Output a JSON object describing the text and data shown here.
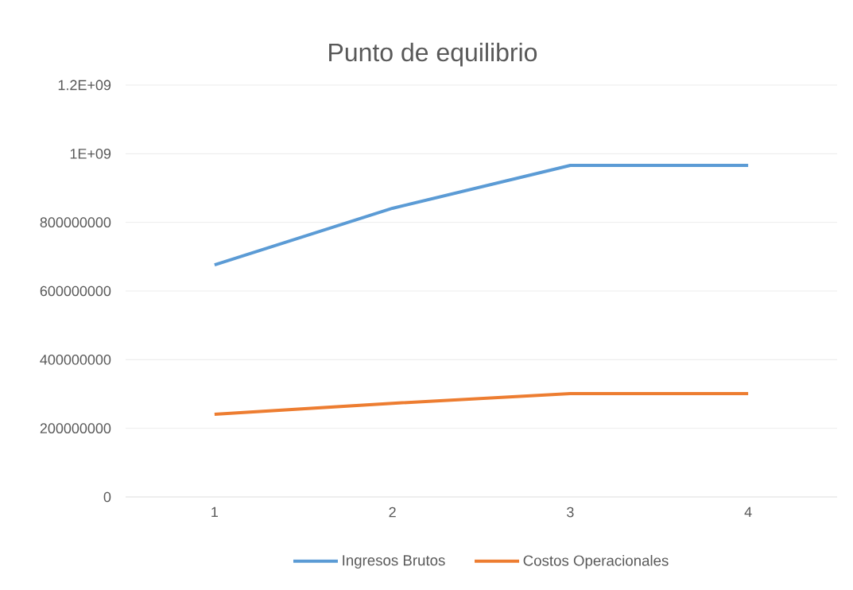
{
  "chart_data": {
    "type": "line",
    "title": "Punto de equilibrio",
    "categories": [
      "1",
      "2",
      "3",
      "4"
    ],
    "series": [
      {
        "name": "Ingresos Brutos",
        "color": "#5b9bd5",
        "values": [
          676000000,
          841000000,
          966000000,
          966000000
        ]
      },
      {
        "name": "Costos Operacionales",
        "color": "#ed7d31",
        "values": [
          241000000,
          273000000,
          301000000,
          301000000
        ]
      }
    ],
    "ylim": [
      0,
      1200000000
    ],
    "yticks": [
      0,
      200000000,
      400000000,
      600000000,
      800000000,
      {
        "value": 1000000000,
        "label": "1E+09"
      },
      {
        "value": 1200000000,
        "label": "1.2E+09"
      }
    ],
    "grid": "y",
    "legend": "bottom",
    "marker": "none",
    "line_style": "solid"
  }
}
